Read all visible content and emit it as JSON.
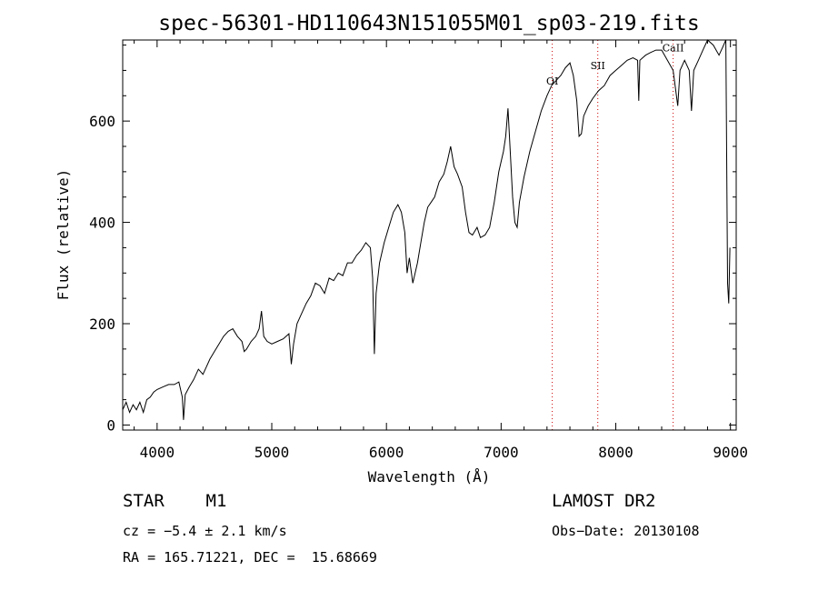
{
  "chart_data": {
    "type": "line",
    "title": "spec-56301-HD110643N151055M01_sp03-219.fits",
    "xlabel": "Wavelength (Å)",
    "ylabel": "Flux (relative)",
    "xlim": [
      3700,
      9050
    ],
    "ylim": [
      -10,
      760
    ],
    "xticks": [
      4000,
      5000,
      6000,
      7000,
      8000,
      9000
    ],
    "yticks": [
      0,
      200,
      400,
      600
    ],
    "grid": false,
    "series": [
      {
        "points": [
          [
            3700,
            30
          ],
          [
            3730,
            45
          ],
          [
            3760,
            25
          ],
          [
            3790,
            40
          ],
          [
            3820,
            30
          ],
          [
            3850,
            45
          ],
          [
            3880,
            25
          ],
          [
            3910,
            50
          ],
          [
            3940,
            55
          ],
          [
            3970,
            65
          ],
          [
            4000,
            70
          ],
          [
            4050,
            75
          ],
          [
            4100,
            80
          ],
          [
            4150,
            80
          ],
          [
            4190,
            85
          ],
          [
            4220,
            55
          ],
          [
            4230,
            10
          ],
          [
            4245,
            60
          ],
          [
            4280,
            75
          ],
          [
            4320,
            90
          ],
          [
            4360,
            110
          ],
          [
            4400,
            100
          ],
          [
            4430,
            115
          ],
          [
            4460,
            130
          ],
          [
            4500,
            145
          ],
          [
            4540,
            160
          ],
          [
            4580,
            175
          ],
          [
            4620,
            185
          ],
          [
            4660,
            190
          ],
          [
            4700,
            175
          ],
          [
            4740,
            165
          ],
          [
            4760,
            145
          ],
          [
            4780,
            150
          ],
          [
            4820,
            165
          ],
          [
            4860,
            175
          ],
          [
            4890,
            190
          ],
          [
            4910,
            225
          ],
          [
            4930,
            175
          ],
          [
            4960,
            165
          ],
          [
            5000,
            160
          ],
          [
            5050,
            165
          ],
          [
            5100,
            170
          ],
          [
            5150,
            180
          ],
          [
            5170,
            120
          ],
          [
            5190,
            160
          ],
          [
            5220,
            200
          ],
          [
            5260,
            220
          ],
          [
            5300,
            240
          ],
          [
            5340,
            255
          ],
          [
            5380,
            280
          ],
          [
            5420,
            275
          ],
          [
            5460,
            260
          ],
          [
            5500,
            290
          ],
          [
            5540,
            285
          ],
          [
            5580,
            300
          ],
          [
            5620,
            295
          ],
          [
            5660,
            320
          ],
          [
            5700,
            320
          ],
          [
            5740,
            335
          ],
          [
            5780,
            345
          ],
          [
            5820,
            360
          ],
          [
            5860,
            350
          ],
          [
            5880,
            290
          ],
          [
            5895,
            140
          ],
          [
            5910,
            260
          ],
          [
            5940,
            320
          ],
          [
            5980,
            360
          ],
          [
            6020,
            390
          ],
          [
            6060,
            420
          ],
          [
            6100,
            435
          ],
          [
            6130,
            420
          ],
          [
            6160,
            380
          ],
          [
            6180,
            300
          ],
          [
            6200,
            330
          ],
          [
            6230,
            280
          ],
          [
            6270,
            320
          ],
          [
            6300,
            360
          ],
          [
            6330,
            400
          ],
          [
            6360,
            430
          ],
          [
            6390,
            440
          ],
          [
            6420,
            450
          ],
          [
            6460,
            480
          ],
          [
            6500,
            495
          ],
          [
            6530,
            520
          ],
          [
            6560,
            550
          ],
          [
            6590,
            510
          ],
          [
            6620,
            495
          ],
          [
            6660,
            470
          ],
          [
            6690,
            420
          ],
          [
            6720,
            380
          ],
          [
            6750,
            375
          ],
          [
            6790,
            390
          ],
          [
            6820,
            370
          ],
          [
            6860,
            375
          ],
          [
            6900,
            390
          ],
          [
            6940,
            440
          ],
          [
            6980,
            500
          ],
          [
            7020,
            540
          ],
          [
            7040,
            570
          ],
          [
            7060,
            625
          ],
          [
            7080,
            540
          ],
          [
            7100,
            450
          ],
          [
            7120,
            400
          ],
          [
            7140,
            390
          ],
          [
            7160,
            440
          ],
          [
            7200,
            490
          ],
          [
            7250,
            540
          ],
          [
            7300,
            580
          ],
          [
            7350,
            620
          ],
          [
            7400,
            650
          ],
          [
            7440,
            670
          ],
          [
            7480,
            680
          ],
          [
            7520,
            690
          ],
          [
            7560,
            705
          ],
          [
            7600,
            715
          ],
          [
            7630,
            690
          ],
          [
            7660,
            640
          ],
          [
            7680,
            570
          ],
          [
            7700,
            575
          ],
          [
            7720,
            610
          ],
          [
            7760,
            630
          ],
          [
            7800,
            645
          ],
          [
            7850,
            660
          ],
          [
            7900,
            670
          ],
          [
            7950,
            690
          ],
          [
            8000,
            700
          ],
          [
            8050,
            710
          ],
          [
            8100,
            720
          ],
          [
            8150,
            725
          ],
          [
            8190,
            720
          ],
          [
            8200,
            640
          ],
          [
            8210,
            720
          ],
          [
            8260,
            730
          ],
          [
            8300,
            735
          ],
          [
            8350,
            740
          ],
          [
            8400,
            740
          ],
          [
            8450,
            720
          ],
          [
            8500,
            700
          ],
          [
            8540,
            630
          ],
          [
            8560,
            700
          ],
          [
            8600,
            720
          ],
          [
            8640,
            700
          ],
          [
            8660,
            620
          ],
          [
            8680,
            700
          ],
          [
            8720,
            720
          ],
          [
            8760,
            740
          ],
          [
            8800,
            760
          ],
          [
            8850,
            750
          ],
          [
            8900,
            730
          ],
          [
            8930,
            745
          ],
          [
            8960,
            760
          ],
          [
            8975,
            280
          ],
          [
            8985,
            240
          ],
          [
            8995,
            350
          ]
        ]
      }
    ],
    "annotations": [
      {
        "label": "OI",
        "x": 7446,
        "y": 672
      },
      {
        "label": "SII",
        "x": 7843,
        "y": 703
      },
      {
        "label": "CaII",
        "x": 8500,
        "y": 738
      }
    ],
    "line_markers": [
      7446,
      7843,
      8500
    ]
  },
  "info": {
    "class": "STAR    M1",
    "survey": "LAMOST DR2",
    "cz": "cz = −5.4 ± 2.1 km/s",
    "obs_date": "Obs−Date: 20130108",
    "radec": "RA = 165.71221, DEC =  15.68669"
  }
}
